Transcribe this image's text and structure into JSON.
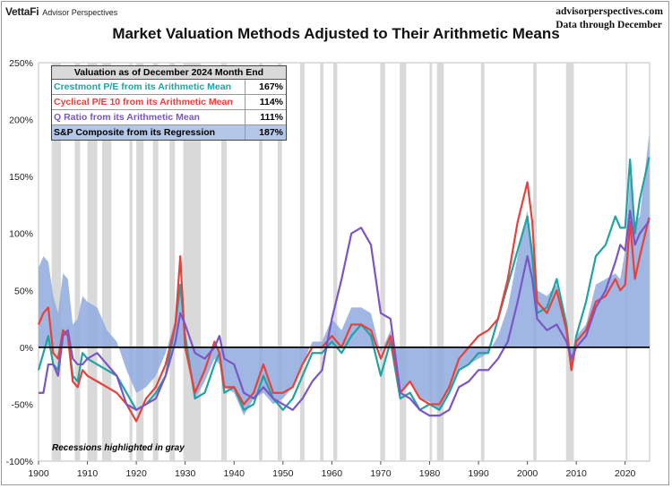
{
  "header": {
    "brand": "VettaFi",
    "brand_sub": "Advisor Perspectives",
    "site": "advisorperspectives.com",
    "data_through": "Data through December"
  },
  "colors": {
    "crestmont": "#1fa3a3",
    "cyclical": "#e8403a",
    "qratio": "#7b55c7",
    "regression_fill": "#8eaadd",
    "recession": "#d9d9d9"
  },
  "chart_data": {
    "type": "line",
    "title": "Market Valuation Methods Adjusted to Their Arithmetic Means",
    "xlim": [
      1900,
      2025
    ],
    "ylim": [
      -100,
      250
    ],
    "x_ticks": [
      1900,
      1910,
      1920,
      1930,
      1940,
      1950,
      1960,
      1970,
      1980,
      1990,
      2000,
      2010,
      2020
    ],
    "x_tick_labels": [
      "1900",
      "1910",
      "1920",
      "1930",
      "1940",
      "1950",
      "1960",
      "1970",
      "1980",
      "1990",
      "2000",
      "2010",
      "2020"
    ],
    "y_ticks": [
      -100,
      -50,
      0,
      50,
      100,
      150,
      200,
      250
    ],
    "y_tick_labels": [
      "-100%",
      "-50%",
      "0%",
      "50%",
      "100%",
      "150%",
      "200%",
      "250%"
    ],
    "legend": {
      "header": "Valuation as of December 2024 Month End",
      "entries": [
        {
          "label": "Crestmont P/E from its Arithmetic Mean",
          "value": "167%",
          "color": "#1fa3a3",
          "bg": "#ffffff"
        },
        {
          "label": "Cyclical P/E 10 from its Arithmetic Mean",
          "value": "114%",
          "color": "#e8403a",
          "bg": "#ffffff"
        },
        {
          "label": "Q Ratio from its Arithmetic Mean",
          "value": "111%",
          "color": "#7b55c7",
          "bg": "#ffffff"
        },
        {
          "label": "S&P Composite from its Regression",
          "value": "187%",
          "color": "#000000",
          "bg": "#b4c7e7"
        }
      ]
    },
    "annotation": "Recessions highlighted in gray",
    "recessions": [
      [
        1902.7,
        1904.6
      ],
      [
        1907.4,
        1908.5
      ],
      [
        1910.0,
        1912.0
      ],
      [
        1913.0,
        1914.9
      ],
      [
        1918.6,
        1919.2
      ],
      [
        1920.0,
        1921.5
      ],
      [
        1923.4,
        1924.5
      ],
      [
        1926.8,
        1927.9
      ],
      [
        1929.6,
        1933.2
      ],
      [
        1937.4,
        1938.5
      ],
      [
        1945.1,
        1945.8
      ],
      [
        1948.9,
        1949.8
      ],
      [
        1953.5,
        1954.4
      ],
      [
        1957.6,
        1958.3
      ],
      [
        1960.3,
        1961.1
      ],
      [
        1969.9,
        1970.9
      ],
      [
        1973.9,
        1975.2
      ],
      [
        1980.0,
        1980.5
      ],
      [
        1981.5,
        1982.9
      ],
      [
        1990.5,
        1991.2
      ],
      [
        2001.2,
        2001.9
      ],
      [
        2007.9,
        2009.5
      ],
      [
        2020.1,
        2020.3
      ]
    ],
    "series": [
      {
        "name": "S&P Composite from its Regression",
        "kind": "area",
        "x": [
          1900,
          1901,
          1902,
          1903,
          1904,
          1905,
          1906,
          1907,
          1908,
          1909,
          1910,
          1912,
          1914,
          1916,
          1918,
          1920,
          1922,
          1924,
          1926,
          1928,
          1929,
          1930,
          1932,
          1934,
          1936,
          1937,
          1938,
          1940,
          1942,
          1944,
          1946,
          1948,
          1950,
          1952,
          1954,
          1956,
          1958,
          1960,
          1962,
          1964,
          1966,
          1968,
          1970,
          1972,
          1974,
          1976,
          1978,
          1980,
          1982,
          1984,
          1986,
          1988,
          1990,
          1992,
          1994,
          1996,
          1998,
          2000,
          2001,
          2002,
          2004,
          2006,
          2008,
          2009,
          2010,
          2012,
          2014,
          2016,
          2018,
          2019,
          2020,
          2021,
          2022,
          2023,
          2024.9
        ],
        "y": [
          70,
          80,
          75,
          45,
          30,
          65,
          60,
          20,
          25,
          45,
          40,
          35,
          15,
          5,
          -20,
          -40,
          -35,
          -25,
          -5,
          25,
          55,
          5,
          -45,
          -30,
          -10,
          -15,
          -35,
          -40,
          -60,
          -45,
          -40,
          -50,
          -45,
          -35,
          -15,
          5,
          5,
          25,
          15,
          35,
          35,
          30,
          -5,
          15,
          -40,
          -30,
          -45,
          -48,
          -55,
          -40,
          -20,
          -15,
          -10,
          -5,
          10,
          35,
          80,
          120,
          90,
          50,
          45,
          55,
          20,
          -15,
          10,
          20,
          55,
          60,
          65,
          60,
          85,
          150,
          110,
          115,
          187
        ]
      },
      {
        "name": "Crestmont P/E from its Arithmetic Mean",
        "kind": "line",
        "x": [
          1900,
          1901,
          1902,
          1903,
          1904,
          1905,
          1906,
          1907,
          1908,
          1909,
          1910,
          1912,
          1914,
          1916,
          1918,
          1920,
          1922,
          1924,
          1926,
          1928,
          1929,
          1930,
          1932,
          1934,
          1936,
          1937,
          1938,
          1940,
          1942,
          1944,
          1946,
          1948,
          1950,
          1952,
          1954,
          1956,
          1958,
          1960,
          1962,
          1964,
          1966,
          1968,
          1970,
          1972,
          1974,
          1976,
          1978,
          1980,
          1982,
          1984,
          1986,
          1988,
          1990,
          1992,
          1994,
          1996,
          1998,
          2000,
          2001,
          2002,
          2004,
          2006,
          2008,
          2009,
          2010,
          2012,
          2014,
          2016,
          2018,
          2019,
          2020,
          2021,
          2022,
          2023,
          2024.9
        ],
        "y": [
          -20,
          -5,
          10,
          -15,
          -20,
          15,
          10,
          -25,
          -30,
          -5,
          -10,
          -15,
          -20,
          -25,
          -40,
          -55,
          -50,
          -40,
          -25,
          20,
          55,
          10,
          -45,
          -40,
          -15,
          -5,
          -40,
          -35,
          -55,
          -50,
          -25,
          -45,
          -55,
          -45,
          -25,
          -5,
          -5,
          5,
          -5,
          10,
          20,
          10,
          -25,
          5,
          -45,
          -40,
          -55,
          -50,
          -55,
          -40,
          -20,
          -15,
          -5,
          -5,
          25,
          55,
          85,
          115,
          80,
          30,
          35,
          60,
          20,
          -20,
          10,
          40,
          80,
          90,
          115,
          105,
          105,
          165,
          100,
          130,
          167
        ]
      },
      {
        "name": "Cyclical P/E 10 from its Arithmetic Mean",
        "kind": "line",
        "x": [
          1900,
          1901,
          1902,
          1903,
          1904,
          1905,
          1906,
          1907,
          1908,
          1909,
          1910,
          1912,
          1914,
          1916,
          1918,
          1920,
          1922,
          1924,
          1926,
          1928,
          1929,
          1930,
          1932,
          1934,
          1936,
          1937,
          1938,
          1940,
          1942,
          1944,
          1946,
          1948,
          1950,
          1952,
          1954,
          1956,
          1958,
          1960,
          1962,
          1964,
          1966,
          1968,
          1970,
          1972,
          1974,
          1976,
          1978,
          1980,
          1982,
          1984,
          1986,
          1988,
          1990,
          1992,
          1994,
          1996,
          1998,
          2000,
          2001,
          2002,
          2004,
          2006,
          2008,
          2009,
          2010,
          2012,
          2014,
          2016,
          2018,
          2019,
          2020,
          2021,
          2022,
          2023,
          2024.9
        ],
        "y": [
          20,
          30,
          35,
          -5,
          -10,
          15,
          10,
          -30,
          -35,
          -20,
          -25,
          -30,
          -35,
          -40,
          -50,
          -65,
          -45,
          -35,
          -15,
          20,
          80,
          0,
          -40,
          -20,
          5,
          -5,
          -35,
          -35,
          -50,
          -40,
          -15,
          -40,
          -40,
          -35,
          -15,
          0,
          0,
          10,
          0,
          20,
          20,
          15,
          -10,
          10,
          -40,
          -30,
          -45,
          -50,
          -50,
          -35,
          -10,
          0,
          10,
          15,
          25,
          60,
          110,
          145,
          110,
          40,
          30,
          50,
          15,
          -20,
          5,
          15,
          40,
          45,
          60,
          50,
          55,
          110,
          60,
          80,
          114
        ]
      },
      {
        "name": "Q Ratio from its Arithmetic Mean",
        "kind": "line",
        "x": [
          1900,
          1901,
          1902,
          1903,
          1904,
          1905,
          1906,
          1907,
          1908,
          1909,
          1910,
          1912,
          1914,
          1916,
          1918,
          1920,
          1922,
          1924,
          1926,
          1928,
          1929,
          1930,
          1932,
          1934,
          1936,
          1937,
          1938,
          1940,
          1942,
          1944,
          1946,
          1948,
          1950,
          1952,
          1954,
          1956,
          1958,
          1960,
          1962,
          1964,
          1966,
          1968,
          1970,
          1972,
          1974,
          1976,
          1978,
          1980,
          1982,
          1984,
          1986,
          1988,
          1990,
          1992,
          1994,
          1996,
          1998,
          2000,
          2001,
          2002,
          2004,
          2006,
          2008,
          2009,
          2010,
          2012,
          2014,
          2016,
          2018,
          2019,
          2020,
          2021,
          2022,
          2023,
          2024.9
        ],
        "y": [
          -40,
          -40,
          -15,
          -15,
          -25,
          10,
          15,
          -10,
          -15,
          -15,
          -10,
          -5,
          -15,
          -25,
          -50,
          -55,
          -50,
          -45,
          -25,
          5,
          30,
          20,
          -5,
          -10,
          0,
          10,
          -10,
          -15,
          -40,
          -45,
          -35,
          -45,
          -50,
          -55,
          -45,
          -30,
          -20,
          25,
          60,
          100,
          105,
          90,
          30,
          25,
          -40,
          -45,
          -55,
          -60,
          -60,
          -55,
          -35,
          -30,
          -20,
          -20,
          -10,
          5,
          40,
          80,
          60,
          25,
          15,
          20,
          5,
          -10,
          0,
          10,
          35,
          50,
          75,
          90,
          85,
          120,
          90,
          100,
          111
        ]
      }
    ]
  }
}
